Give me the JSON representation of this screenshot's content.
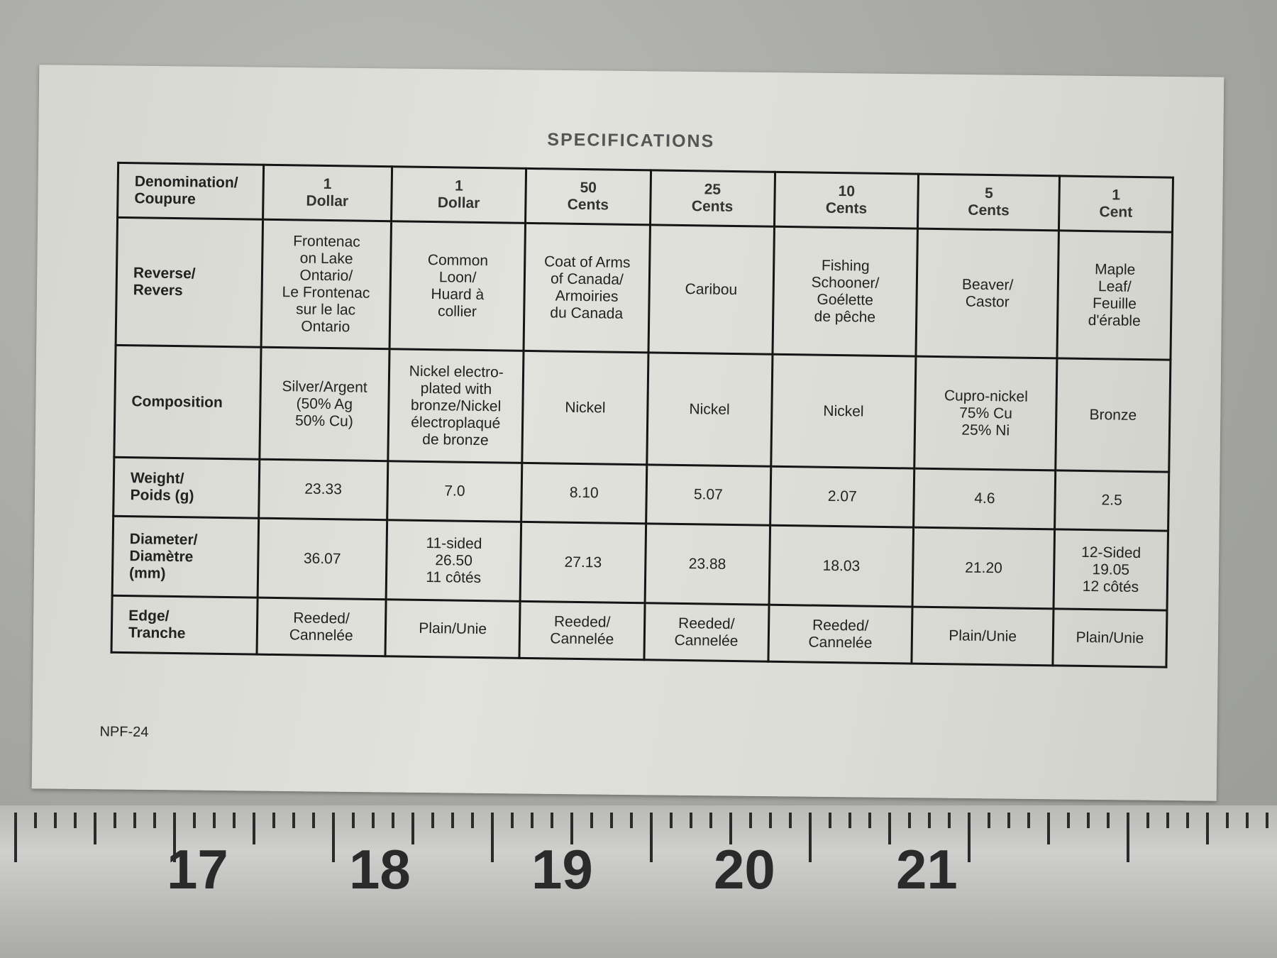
{
  "title": "SPECIFICATIONS",
  "header": {
    "label": "Denomination/\nCoupure",
    "cells": [
      "1\nDollar",
      "1\nDollar",
      "50\nCents",
      "25\nCents",
      "10\nCents",
      "5\nCents",
      "1\nCent"
    ]
  },
  "rows": [
    {
      "label": "Reverse/\n   Revers",
      "cells": [
        "Frontenac\non Lake\nOntario/\nLe Frontenac\nsur le lac\nOntario",
        "Common\nLoon/\nHuard à\ncollier",
        "Coat of Arms\nof Canada/\nArmoiries\ndu Canada",
        "Caribou",
        "Fishing\nSchooner/\nGoélette\nde pêche",
        "Beaver/\nCastor",
        "Maple\nLeaf/\nFeuille\nd'érable"
      ]
    },
    {
      "label": "Composition",
      "cells": [
        "Silver/Argent\n(50% Ag\n50% Cu)",
        "Nickel electro-\nplated with\nbronze/Nickel\nélectroplaqué\nde bronze",
        "Nickel",
        "Nickel",
        "Nickel",
        "Cupro-nickel\n75% Cu\n25% Ni",
        "Bronze"
      ]
    },
    {
      "label": "Weight/\n   Poids (g)",
      "cells": [
        "23.33",
        "7.0",
        "8.10",
        "5.07",
        "2.07",
        "4.6",
        "2.5"
      ]
    },
    {
      "label": "Diameter/\n   Diamètre\n   (mm)",
      "cells": [
        "36.07",
        "11-sided\n26.50\n11 côtés",
        "27.13",
        "23.88",
        "18.03",
        "21.20",
        "12-Sided\n19.05\n12 côtés"
      ]
    },
    {
      "label": "Edge/\n   Tranche",
      "cells": [
        "Reeded/\nCannelée",
        "Plain/Unie",
        "Reeded/\nCannelée",
        "Reeded/\nCannelée",
        "Reeded/\nCannelée",
        "Plain/Unie",
        "Plain/Unie"
      ]
    }
  ],
  "code": "NPF-24",
  "ruler": {
    "numbers": [
      "17",
      "18",
      "19",
      "20",
      "21"
    ]
  }
}
